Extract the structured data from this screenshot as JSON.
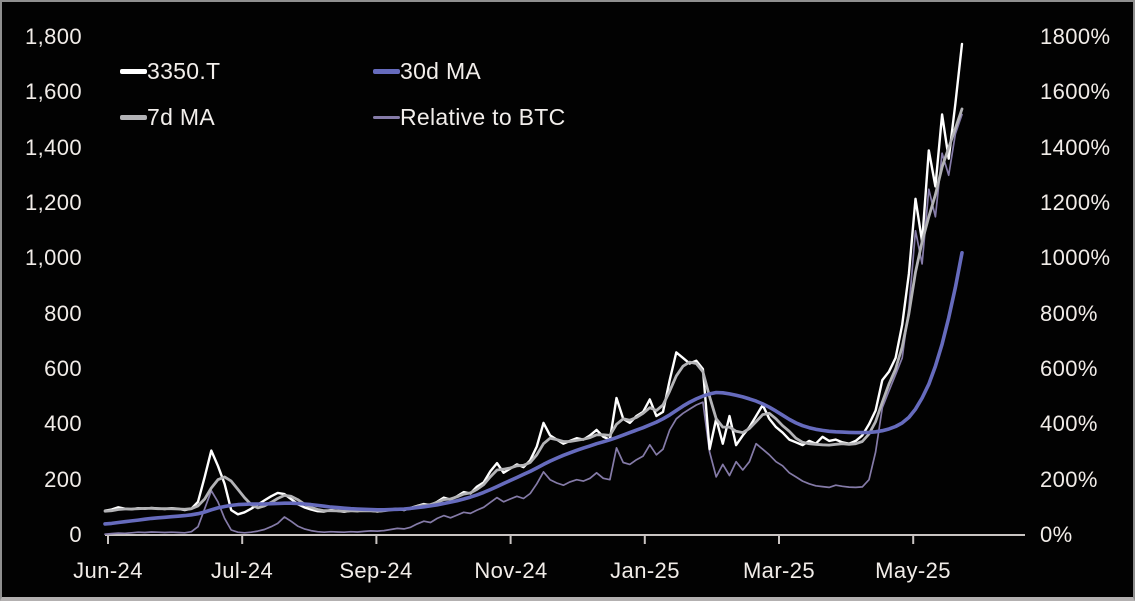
{
  "app": {
    "background": "#020202",
    "text_color": "#f1ece8",
    "frame_border_color": "#8f8f8f"
  },
  "chart_data": {
    "type": "line",
    "title": "",
    "xlabel": "",
    "ylabel_left": "",
    "ylabel_right": "",
    "grid": "off",
    "background": "#020202",
    "axis_line_color": "#c9c4c2",
    "legend_position": "top-left-inside",
    "x_axis": {
      "labels": [
        "Jun-24",
        "Jul-24",
        "Sep-24",
        "Nov-24",
        "Jan-25",
        "Mar-25",
        "May-25"
      ]
    },
    "y_left_axis": {
      "range": [
        0,
        1800
      ],
      "labels": [
        "1,800",
        "1,600",
        "1,400",
        "1,200",
        "1,000",
        "800",
        "600",
        "400",
        "200",
        "0"
      ],
      "values": [
        1800,
        1600,
        1400,
        1200,
        1000,
        800,
        600,
        400,
        200,
        0
      ]
    },
    "y_right_axis": {
      "range": [
        0,
        1800
      ],
      "labels": [
        "1800%",
        "1600%",
        "1400%",
        "1200%",
        "1000%",
        "800%",
        "600%",
        "400%",
        "200%",
        "0%"
      ],
      "values": [
        1800,
        1600,
        1400,
        1200,
        1000,
        800,
        600,
        400,
        200,
        0
      ]
    },
    "series": [
      {
        "name": "3350.T",
        "color": "#ffffff",
        "width": 2.4,
        "swatch_height": 5,
        "z": 2,
        "axis": "left",
        "values": [
          88,
          92,
          100,
          95,
          93,
          97,
          95,
          98,
          96,
          94,
          97,
          95,
          90,
          95,
          120,
          210,
          305,
          250,
          185,
          90,
          75,
          82,
          95,
          110,
          125,
          140,
          152,
          148,
          130,
          112,
          100,
          92,
          86,
          85,
          90,
          87,
          84,
          88,
          86,
          90,
          88,
          85,
          88,
          92,
          95,
          90,
          98,
          105,
          112,
          108,
          120,
          135,
          128,
          140,
          155,
          150,
          175,
          190,
          230,
          260,
          225,
          240,
          255,
          245,
          270,
          320,
          405,
          360,
          345,
          330,
          340,
          350,
          345,
          360,
          380,
          355,
          345,
          495,
          420,
          405,
          430,
          445,
          490,
          430,
          445,
          560,
          660,
          640,
          620,
          630,
          600,
          310,
          420,
          330,
          430,
          325,
          360,
          390,
          430,
          470,
          420,
          390,
          370,
          345,
          335,
          325,
          340,
          330,
          355,
          340,
          345,
          335,
          330,
          340,
          360,
          400,
          450,
          560,
          590,
          640,
          760,
          945,
          1215,
          1060,
          1390,
          1260,
          1520,
          1360,
          1560,
          1775
        ]
      },
      {
        "name": "7d MA",
        "color": "#b3b3b6",
        "width": 2.8,
        "swatch_height": 5,
        "z": 3,
        "axis": "left",
        "values": [
          86,
          88,
          92,
          94,
          94,
          95,
          96,
          96,
          95,
          95,
          95,
          94,
          93,
          95,
          105,
          130,
          170,
          200,
          210,
          195,
          165,
          135,
          110,
          98,
          105,
          118,
          132,
          143,
          140,
          128,
          112,
          100,
          92,
          88,
          88,
          87,
          86,
          87,
          87,
          88,
          87,
          86,
          88,
          91,
          93,
          92,
          96,
          103,
          108,
          110,
          118,
          128,
          130,
          138,
          148,
          152,
          165,
          182,
          210,
          235,
          238,
          242,
          250,
          252,
          262,
          290,
          330,
          350,
          345,
          338,
          338,
          342,
          346,
          352,
          362,
          362,
          360,
          400,
          420,
          415,
          425,
          440,
          460,
          450,
          470,
          520,
          575,
          610,
          625,
          620,
          590,
          500,
          420,
          390,
          390,
          375,
          370,
          385,
          410,
          435,
          440,
          420,
          395,
          375,
          350,
          335,
          330,
          328,
          326,
          325,
          328,
          330,
          328,
          330,
          338,
          365,
          410,
          480,
          545,
          600,
          680,
          800,
          950,
          1060,
          1150,
          1230,
          1330,
          1400,
          1470,
          1540
        ]
      },
      {
        "name": "30d MA",
        "color": "#666bbd",
        "width": 3.6,
        "swatch_height": 5,
        "z": 4,
        "axis": "left",
        "values": [
          40,
          42,
          45,
          48,
          51,
          54,
          57,
          60,
          62,
          64,
          66,
          68,
          70,
          73,
          77,
          83,
          91,
          98,
          103,
          107,
          110,
          111,
          112,
          112,
          112,
          113,
          114,
          115,
          115,
          114,
          112,
          110,
          107,
          104,
          101,
          99,
          97,
          95,
          94,
          93,
          92,
          91,
          91,
          92,
          93,
          94,
          96,
          99,
          102,
          105,
          109,
          114,
          119,
          124,
          130,
          137,
          145,
          154,
          164,
          175,
          186,
          197,
          208,
          219,
          230,
          242,
          255,
          267,
          278,
          288,
          297,
          306,
          314,
          322,
          330,
          337,
          344,
          352,
          361,
          370,
          379,
          388,
          398,
          408,
          420,
          434,
          450,
          466,
          480,
          492,
          502,
          510,
          515,
          514,
          510,
          505,
          499,
          492,
          484,
          474,
          462,
          448,
          433,
          418,
          405,
          395,
          388,
          382,
          378,
          375,
          373,
          372,
          371,
          370,
          370,
          371,
          373,
          377,
          383,
          392,
          405,
          425,
          455,
          495,
          545,
          610,
          690,
          785,
          895,
          1020
        ]
      },
      {
        "name": "Relative to BTC",
        "color": "#857ba8",
        "width": 1.7,
        "swatch_height": 3,
        "z": 1,
        "axis": "right",
        "values": [
          3,
          5,
          7,
          6,
          8,
          10,
          9,
          11,
          10,
          9,
          10,
          9,
          8,
          12,
          30,
          95,
          160,
          120,
          60,
          18,
          10,
          8,
          10,
          14,
          20,
          30,
          42,
          65,
          50,
          32,
          22,
          16,
          12,
          10,
          12,
          11,
          10,
          12,
          11,
          13,
          15,
          14,
          16,
          20,
          24,
          22,
          28,
          40,
          50,
          45,
          60,
          70,
          62,
          72,
          82,
          78,
          90,
          100,
          118,
          135,
          120,
          130,
          140,
          132,
          150,
          185,
          228,
          200,
          188,
          180,
          192,
          200,
          195,
          205,
          225,
          205,
          200,
          315,
          262,
          255,
          272,
          285,
          326,
          290,
          310,
          380,
          420,
          440,
          455,
          470,
          480,
          300,
          210,
          255,
          215,
          265,
          235,
          265,
          330,
          310,
          290,
          265,
          250,
          225,
          210,
          195,
          185,
          178,
          175,
          172,
          180,
          176,
          173,
          172,
          174,
          200,
          300,
          460,
          520,
          580,
          640,
          820,
          1100,
          980,
          1250,
          1150,
          1380,
          1300,
          1450,
          1520
        ]
      }
    ]
  }
}
